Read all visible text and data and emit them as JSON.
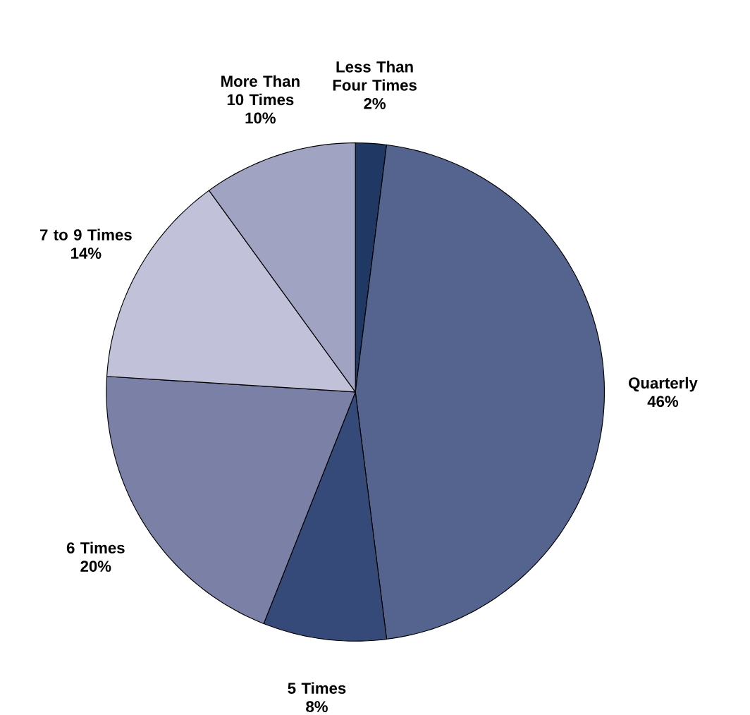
{
  "chart_data": {
    "type": "pie",
    "categories": [
      "Less Than Four Times",
      "Quarterly",
      "5 Times",
      "6 Times",
      "7 to 9 Times",
      "More Than 10 Times"
    ],
    "values": [
      2,
      46,
      8,
      20,
      14,
      10
    ],
    "value_labels": [
      "2%",
      "46%",
      "8%",
      "20%",
      "14%",
      "10%"
    ],
    "colors": [
      "#1f3864",
      "#55648f",
      "#364a79",
      "#7a80a6",
      "#c1c2d9",
      "#a0a3c1"
    ]
  }
}
